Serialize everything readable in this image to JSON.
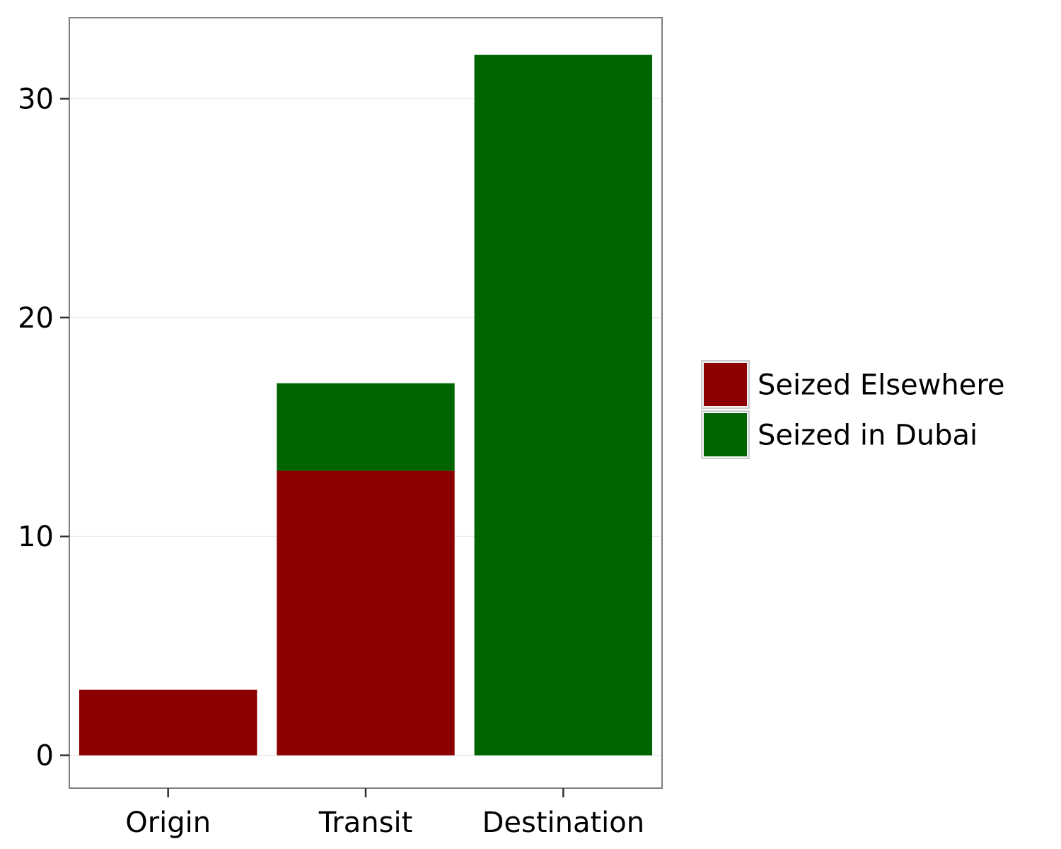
{
  "chart_data": {
    "type": "bar",
    "stacked": true,
    "categories": [
      "Origin",
      "Transit",
      "Destination"
    ],
    "series": [
      {
        "name": "Seized Elsewhere",
        "color": "#8b0000",
        "values": [
          3,
          13,
          0
        ]
      },
      {
        "name": "Seized in Dubai",
        "color": "#006400",
        "values": [
          0,
          4,
          32
        ]
      }
    ],
    "yticks": [
      0,
      10,
      20,
      30
    ],
    "ylim": [
      -1.5,
      33.7
    ],
    "grid": true,
    "legend_position": "right",
    "title": "",
    "xlabel": "",
    "ylabel": ""
  }
}
